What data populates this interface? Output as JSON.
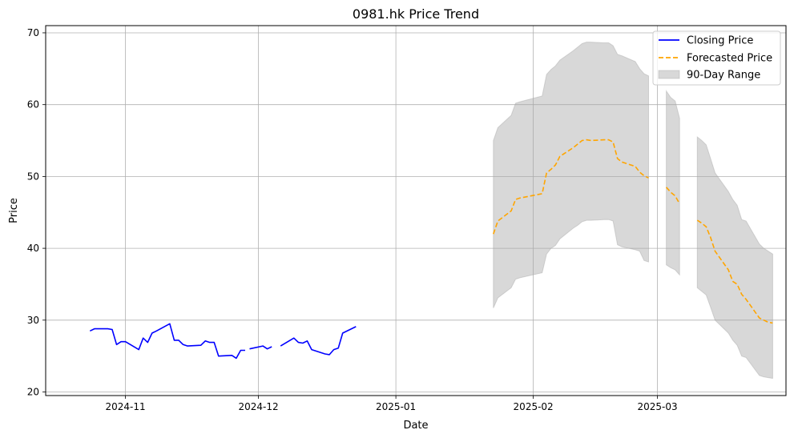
{
  "chart_data": {
    "type": "line",
    "title": "0981.hk Price Trend",
    "xlabel": "Date",
    "ylabel": "Price",
    "xlim": [
      "2024-10-14",
      "2025-03-30"
    ],
    "ylim": [
      19.5,
      71
    ],
    "grid": true,
    "legend_position": "top-right",
    "x_ticks": [
      "2024-11-01",
      "2024-12-01",
      "2025-01-01",
      "2025-02-01",
      "2025-03-01"
    ],
    "x_tick_labels": [
      "2024-11",
      "2024-12",
      "2025-01",
      "2025-02",
      "2025-03"
    ],
    "y_ticks": [
      20,
      30,
      40,
      50,
      60,
      70
    ],
    "y_tick_labels": [
      "20",
      "30",
      "40",
      "50",
      "60",
      "70"
    ],
    "series": [
      {
        "name": "Closing Price",
        "kind": "line",
        "color": "#0000ff",
        "style": "solid",
        "segments": [
          {
            "x": [
              "2024-10-24",
              "2024-10-25",
              "2024-10-28",
              "2024-10-29",
              "2024-10-30",
              "2024-10-31",
              "2024-11-01",
              "2024-11-04",
              "2024-11-05",
              "2024-11-06",
              "2024-11-07",
              "2024-11-08",
              "2024-11-11",
              "2024-11-12",
              "2024-11-13",
              "2024-11-14",
              "2024-11-15",
              "2024-11-18",
              "2024-11-19",
              "2024-11-20",
              "2024-11-21",
              "2024-11-22",
              "2024-11-25",
              "2024-11-26",
              "2024-11-27",
              "2024-11-28"
            ],
            "y": [
              28.5,
              28.8,
              28.8,
              28.7,
              26.6,
              27.0,
              27.0,
              25.9,
              27.5,
              26.9,
              28.2,
              28.5,
              29.5,
              27.2,
              27.2,
              26.6,
              26.4,
              26.5,
              27.1,
              26.9,
              26.9,
              25.0,
              25.1,
              24.7,
              25.8,
              25.8
            ]
          },
          {
            "x": [
              "2024-11-29",
              "2024-12-02",
              "2024-12-03",
              "2024-12-04"
            ],
            "y": [
              26.0,
              26.4,
              26.0,
              26.3
            ]
          },
          {
            "x": [
              "2024-12-06",
              "2024-12-09",
              "2024-12-10",
              "2024-12-11",
              "2024-12-12",
              "2024-12-13",
              "2024-12-16",
              "2024-12-17",
              "2024-12-18",
              "2024-12-19",
              "2024-12-20",
              "2024-12-23"
            ],
            "y": [
              26.4,
              27.5,
              26.9,
              26.8,
              27.1,
              25.9,
              25.3,
              25.2,
              25.9,
              26.1,
              28.2,
              29.1
            ]
          }
        ]
      },
      {
        "name": "Forecasted Price",
        "kind": "line",
        "color": "#ffa500",
        "style": "dashed",
        "segments": [
          {
            "x": [
              "2025-01-23",
              "2025-01-24",
              "2025-01-27",
              "2025-01-28",
              "2025-01-29",
              "2025-02-03",
              "2025-02-04",
              "2025-02-05",
              "2025-02-06",
              "2025-02-07",
              "2025-02-10",
              "2025-02-11",
              "2025-02-12",
              "2025-02-13",
              "2025-02-14",
              "2025-02-17",
              "2025-02-18",
              "2025-02-19",
              "2025-02-20",
              "2025-02-21",
              "2025-02-24",
              "2025-02-25",
              "2025-02-26",
              "2025-02-27"
            ],
            "y": [
              42.0,
              43.8,
              45.2,
              46.8,
              47.0,
              47.6,
              50.5,
              51.0,
              51.6,
              52.8,
              54.0,
              54.5,
              55.0,
              55.1,
              55.0,
              55.1,
              55.1,
              54.8,
              52.5,
              52.0,
              51.4,
              50.6,
              50.1,
              49.8
            ]
          },
          {
            "x": [
              "2025-03-03",
              "2025-03-04",
              "2025-03-05",
              "2025-03-06"
            ],
            "y": [
              48.5,
              47.8,
              47.3,
              46.2
            ]
          },
          {
            "x": [
              "2025-03-10",
              "2025-03-11",
              "2025-03-12",
              "2025-03-13",
              "2025-03-14",
              "2025-03-17",
              "2025-03-18",
              "2025-03-19",
              "2025-03-20",
              "2025-03-21",
              "2025-03-24",
              "2025-03-25",
              "2025-03-26",
              "2025-03-27"
            ],
            "y": [
              43.9,
              43.5,
              43.0,
              41.5,
              39.6,
              37.0,
              35.4,
              35.0,
              33.6,
              32.9,
              30.3,
              30.0,
              29.7,
              29.6
            ]
          }
        ]
      },
      {
        "name": "90-Day Range",
        "kind": "band",
        "color": "#a9a9a9",
        "segments": [
          {
            "x": [
              "2025-01-23",
              "2025-01-24",
              "2025-01-27",
              "2025-01-28",
              "2025-01-29",
              "2025-02-03",
              "2025-02-04",
              "2025-02-05",
              "2025-02-06",
              "2025-02-07",
              "2025-02-10",
              "2025-02-11",
              "2025-02-12",
              "2025-02-13",
              "2025-02-14",
              "2025-02-17",
              "2025-02-18",
              "2025-02-19",
              "2025-02-20",
              "2025-02-21",
              "2025-02-24",
              "2025-02-25",
              "2025-02-26",
              "2025-02-27"
            ],
            "upper": [
              55.0,
              56.8,
              58.5,
              60.2,
              60.4,
              61.2,
              64.2,
              64.9,
              65.4,
              66.2,
              67.5,
              68.0,
              68.5,
              68.7,
              68.7,
              68.6,
              68.6,
              68.2,
              67.0,
              66.8,
              66.0,
              65.0,
              64.3,
              64.0
            ],
            "lower": [
              31.7,
              33.1,
              34.5,
              35.7,
              35.9,
              36.6,
              39.2,
              40.0,
              40.4,
              41.3,
              42.8,
              43.2,
              43.7,
              43.9,
              43.9,
              44.0,
              44.0,
              43.8,
              40.5,
              40.2,
              39.8,
              39.6,
              38.3,
              38.1
            ]
          },
          {
            "x": [
              "2025-03-03",
              "2025-03-04",
              "2025-03-05",
              "2025-03-06"
            ],
            "upper": [
              61.9,
              61.0,
              60.5,
              58.1
            ],
            "lower": [
              37.7,
              37.3,
              37.0,
              36.3
            ]
          },
          {
            "x": [
              "2025-03-10",
              "2025-03-11",
              "2025-03-12",
              "2025-03-13",
              "2025-03-14",
              "2025-03-17",
              "2025-03-18",
              "2025-03-19",
              "2025-03-20",
              "2025-03-21",
              "2025-03-24",
              "2025-03-25",
              "2025-03-26",
              "2025-03-27"
            ],
            "upper": [
              55.5,
              55.0,
              54.4,
              52.5,
              50.5,
              47.9,
              46.8,
              46.0,
              44.0,
              43.8,
              40.6,
              40.0,
              39.6,
              39.2
            ],
            "lower": [
              34.5,
              34.0,
              33.5,
              31.8,
              30.0,
              28.2,
              27.2,
              26.5,
              25.0,
              24.8,
              22.3,
              22.1,
              22.0,
              21.9
            ]
          }
        ]
      }
    ]
  }
}
